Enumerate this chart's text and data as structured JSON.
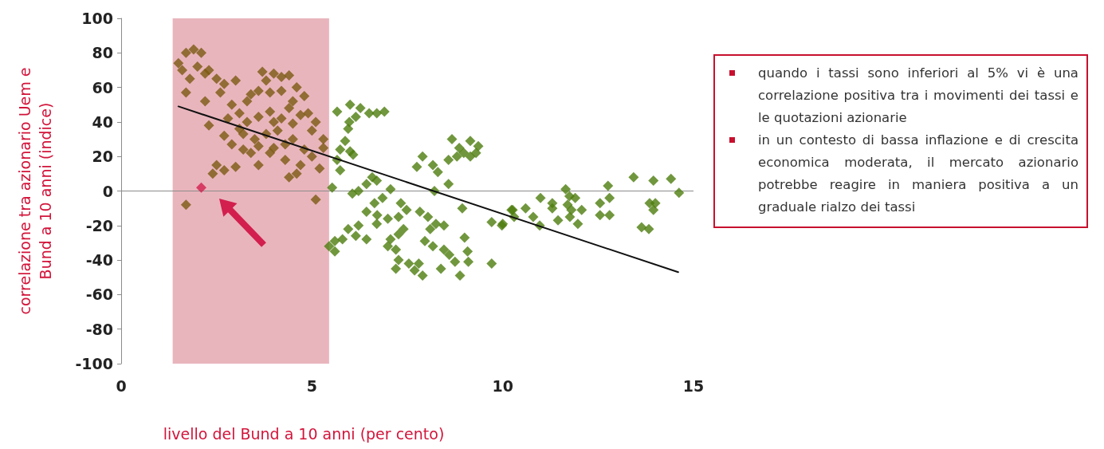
{
  "chart_data": {
    "type": "scatter",
    "xlabel": "livello del Bund a 10 anni (per cento)",
    "ylabel": "correlazione tra azionario Uem e\nBund a 10 anni (indice)",
    "xlim": [
      0,
      15
    ],
    "xticks": [
      0,
      5,
      10,
      15
    ],
    "ylim": [
      -100,
      100
    ],
    "yticks": [
      -100,
      -80,
      -60,
      -40,
      -20,
      0,
      20,
      40,
      60,
      80,
      100
    ],
    "grid": false,
    "legend": false,
    "marker": "diamond",
    "bands": [
      {
        "axis": "x",
        "from": 1.35,
        "to": 5.45,
        "color": "#e9b5bd"
      }
    ],
    "ref_lines": [
      {
        "axis": "y",
        "value": 0,
        "color": "#8c8c8c"
      }
    ],
    "annotations": [
      "quando i tassi sono inferiori al 5% vi è una correlazione positiva tra i movimenti dei tassi e le quotazioni azionarie",
      "in un contesto di bassa inflazione e di crescita economica moderata, il mercato azionario potrebbe reagire in maniera positiva a un graduale rialzo dei tassi"
    ],
    "series": [
      {
        "color": "#7a5a12",
        "x": [
          1.5,
          1.7,
          1.9,
          2.1,
          1.6,
          2.0,
          2.3,
          1.8,
          2.2,
          2.5,
          1.7,
          2.2,
          2.7,
          3.0,
          2.6,
          2.9,
          3.1,
          3.3,
          2.8,
          3.4,
          3.6,
          3.8,
          4.0,
          4.2,
          4.4,
          3.7,
          4.6,
          4.8,
          3.9,
          4.2,
          4.5,
          4.9,
          5.1,
          5.3,
          3.3,
          3.6,
          3.9,
          4.2,
          4.5,
          4.7,
          5.0,
          2.3,
          2.7,
          2.9,
          3.2,
          3.4,
          3.6,
          3.9,
          4.0,
          4.3,
          4.5,
          4.8,
          5.0,
          5.3,
          5.2,
          4.6,
          4.4,
          4.7,
          3.1,
          3.5,
          3.8,
          4.1,
          2.5,
          2.7,
          2.4,
          3.0,
          3.6,
          4.3,
          5.1,
          1.7,
          3.2,
          4.0,
          4.4
        ],
        "values": [
          74,
          80,
          82,
          80,
          70,
          72,
          70,
          65,
          68,
          65,
          57,
          52,
          62,
          64,
          57,
          50,
          45,
          52,
          42,
          56,
          58,
          64,
          68,
          66,
          67,
          69,
          60,
          55,
          57,
          58,
          52,
          45,
          40,
          30,
          40,
          43,
          46,
          42,
          39,
          44,
          35,
          38,
          32,
          27,
          24,
          22,
          26,
          22,
          25,
          27,
          30,
          24,
          20,
          25,
          13,
          10,
          8,
          15,
          36,
          30,
          33,
          35,
          15,
          12,
          10,
          14,
          15,
          18,
          -5,
          -8,
          33,
          40,
          48
        ]
      },
      {
        "color": "#4e7d0e",
        "x": [
          5.66,
          6.0,
          6.27,
          6.5,
          6.7,
          6.9,
          6.15,
          5.98,
          5.95,
          5.87,
          5.74,
          6.0,
          6.08,
          5.66,
          5.74,
          5.53,
          6.58,
          6.43,
          6.22,
          6.06,
          6.7,
          7.06,
          6.85,
          6.64,
          6.43,
          6.71,
          6.99,
          7.33,
          7.48,
          7.27,
          6.7,
          6.22,
          5.95,
          6.15,
          5.8,
          5.6,
          5.45,
          5.6,
          6.43,
          7.06,
          7.27,
          7.4,
          6.99,
          7.2,
          7.27,
          7.2,
          7.54,
          7.69,
          7.9,
          7.8,
          7.83,
          8.04,
          8.25,
          8.46,
          8.1,
          7.96,
          8.17,
          8.46,
          8.6,
          8.75,
          9.0,
          9.08,
          9.1,
          8.38,
          8.88,
          9.71,
          8.21,
          8.58,
          8.94,
          7.9,
          7.75,
          8.17,
          8.3,
          8.58,
          8.67,
          8.86,
          9.15,
          9.36,
          8.98,
          9.15,
          8.8,
          9.3,
          9.71,
          9.98,
          10.26,
          10.3,
          10.0,
          10.23,
          10.6,
          10.8,
          10.97,
          10.99,
          11.3,
          11.3,
          11.45,
          11.65,
          11.75,
          11.7,
          11.8,
          11.9,
          11.76,
          11.97,
          12.07,
          12.55,
          12.55,
          12.76,
          12.8,
          12.8,
          13.43,
          13.64,
          13.83,
          13.95,
          13.85,
          14.0,
          13.95,
          14.41,
          14.62
        ],
        "values": [
          46,
          50,
          48,
          45,
          45,
          46,
          43,
          40,
          36,
          29,
          24,
          23,
          21,
          18,
          12,
          2,
          8,
          4,
          0,
          -1.5,
          6,
          1,
          -4,
          -7,
          -12,
          -14,
          -16,
          -7,
          -11,
          -15,
          -19,
          -20,
          -22,
          -26,
          -28,
          -29,
          -32,
          -35,
          -28,
          -28,
          -25,
          -22,
          -32,
          -34,
          -40,
          -45,
          -42,
          -46,
          -49,
          -42,
          -12,
          -15,
          -19,
          -20,
          -22,
          -29,
          -32,
          -34,
          -37,
          -41,
          -27,
          -35,
          -41,
          -45,
          -49,
          -42,
          0,
          4,
          -10,
          20,
          14,
          15,
          11,
          18,
          30,
          25,
          29,
          26,
          22,
          20,
          20,
          22,
          -18,
          -20,
          -11,
          -15,
          -19,
          -11,
          -10,
          -15,
          -20,
          -4,
          -7,
          -10,
          -17,
          1,
          -3,
          -8,
          -11,
          -4,
          -15,
          -19,
          -11,
          -7,
          -14,
          3,
          -4,
          -14,
          8,
          -21,
          -22,
          6,
          -7,
          -7,
          -11,
          7,
          -1
        ]
      },
      {
        "color": "#d21f4e",
        "x": [
          2.1
        ],
        "values": [
          2
        ]
      },
      {
        "type": "line",
        "color": "#111111",
        "marker": "none",
        "line_style": "solid",
        "x": [
          1.5,
          14.6
        ],
        "values": [
          49,
          -47
        ]
      }
    ]
  }
}
